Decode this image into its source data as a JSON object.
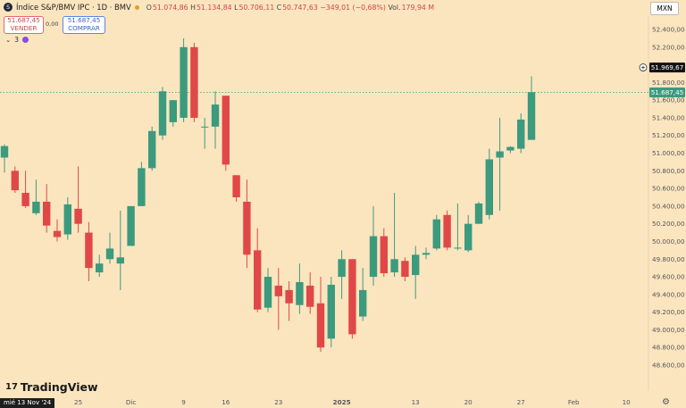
{
  "header": {
    "title": "Índice S&P/BMV IPC · 1D · BMV",
    "market": "BMV",
    "ohlc": {
      "o_label": "O",
      "o": "51.074,86",
      "h_label": "H",
      "h": "51.134,84",
      "l_label": "L",
      "l": "50.706,11",
      "c_label": "C",
      "c": "50.747,63",
      "change": "−349,01 (−0,68%)",
      "vol_label": "Vol.",
      "vol": "179,94 M"
    }
  },
  "trade": {
    "sell_price": "51.687,45",
    "sell_label": "VENDER",
    "spread": "0,00",
    "buy_price": "51.687,45",
    "buy_label": "COMPRAR"
  },
  "indicators": {
    "toggle": "⌄",
    "count": "3"
  },
  "currency": "MXN",
  "brand": "TradingView",
  "date_label": "mié 13 Nov '24",
  "colors": {
    "up": "#3c9a7e",
    "down": "#e04848",
    "background": "#fbe5bf"
  },
  "chart_data": {
    "type": "candlestick",
    "y_ticks": [
      48600,
      48800,
      49000,
      49200,
      49400,
      49600,
      49800,
      50000,
      50200,
      50400,
      50600,
      50800,
      51000,
      51200,
      51400,
      51600,
      51800,
      52000,
      52200,
      52400
    ],
    "y_tick_labels": [
      "48.600,00",
      "48.800,00",
      "49.000,00",
      "49.200,00",
      "49.400,00",
      "49.600,00",
      "49.800,00",
      "50.000,00",
      "50.200,00",
      "50.400,00",
      "50.600,00",
      "50.800,00",
      "51.000,00",
      "51.200,00",
      "51.400,00",
      "51.600,00",
      "51.800,00",
      "52.000,00",
      "52.200,00",
      "52.400,00"
    ],
    "ylim": [
      48400,
      52600
    ],
    "x_ticks": [
      {
        "label": "25",
        "index": 7
      },
      {
        "label": "Dic",
        "index": 12
      },
      {
        "label": "9",
        "index": 17
      },
      {
        "label": "16",
        "index": 21
      },
      {
        "label": "23",
        "index": 26
      },
      {
        "label": "2025",
        "index": 32
      },
      {
        "label": "13",
        "index": 39
      },
      {
        "label": "20",
        "index": 44
      },
      {
        "label": "27",
        "index": 49
      },
      {
        "label": "Feb",
        "index": 54
      },
      {
        "label": "10",
        "index": 59
      }
    ],
    "last_price": 51687.45,
    "last_price_label": "51.687,45",
    "crosshair_price": 51969.67,
    "crosshair_label": "51.969,67",
    "candles": [
      {
        "o": 50950,
        "h": 51100,
        "l": 50780,
        "c": 51080
      },
      {
        "o": 50800,
        "h": 50850,
        "l": 50550,
        "c": 50580
      },
      {
        "o": 50550,
        "h": 50800,
        "l": 50380,
        "c": 50400
      },
      {
        "o": 50320,
        "h": 50700,
        "l": 50300,
        "c": 50450
      },
      {
        "o": 50450,
        "h": 50650,
        "l": 50100,
        "c": 50180
      },
      {
        "o": 50120,
        "h": 50250,
        "l": 50000,
        "c": 50050
      },
      {
        "o": 50080,
        "h": 50500,
        "l": 50020,
        "c": 50420
      },
      {
        "o": 50370,
        "h": 50850,
        "l": 50100,
        "c": 50200
      },
      {
        "o": 50100,
        "h": 50220,
        "l": 49550,
        "c": 49700
      },
      {
        "o": 49650,
        "h": 49850,
        "l": 49600,
        "c": 49750
      },
      {
        "o": 49800,
        "h": 50100,
        "l": 49750,
        "c": 49920
      },
      {
        "o": 49750,
        "h": 50350,
        "l": 49450,
        "c": 49820
      },
      {
        "o": 49950,
        "h": 50400,
        "l": 49950,
        "c": 50400
      },
      {
        "o": 50400,
        "h": 50900,
        "l": 50400,
        "c": 50830
      },
      {
        "o": 50830,
        "h": 51300,
        "l": 50800,
        "c": 51250
      },
      {
        "o": 51200,
        "h": 51750,
        "l": 51150,
        "c": 51700
      },
      {
        "o": 51350,
        "h": 51600,
        "l": 51300,
        "c": 51600
      },
      {
        "o": 51400,
        "h": 52300,
        "l": 51350,
        "c": 52200
      },
      {
        "o": 52200,
        "h": 52250,
        "l": 51350,
        "c": 51400
      },
      {
        "o": 51300,
        "h": 51400,
        "l": 51050,
        "c": 51300
      },
      {
        "o": 51300,
        "h": 51700,
        "l": 51050,
        "c": 51550
      },
      {
        "o": 51650,
        "h": 51650,
        "l": 50800,
        "c": 50870
      },
      {
        "o": 50750,
        "h": 50750,
        "l": 50450,
        "c": 50500
      },
      {
        "o": 50450,
        "h": 50700,
        "l": 49700,
        "c": 49850
      },
      {
        "o": 49900,
        "h": 50150,
        "l": 49200,
        "c": 49230
      },
      {
        "o": 49250,
        "h": 49700,
        "l": 49200,
        "c": 49600
      },
      {
        "o": 49500,
        "h": 49700,
        "l": 49000,
        "c": 49380
      },
      {
        "o": 49450,
        "h": 49550,
        "l": 49100,
        "c": 49300
      },
      {
        "o": 49280,
        "h": 49750,
        "l": 49180,
        "c": 49540
      },
      {
        "o": 49500,
        "h": 49650,
        "l": 49180,
        "c": 49260
      },
      {
        "o": 49300,
        "h": 49600,
        "l": 48750,
        "c": 48800
      },
      {
        "o": 48900,
        "h": 49600,
        "l": 48800,
        "c": 49510
      },
      {
        "o": 49600,
        "h": 49900,
        "l": 49350,
        "c": 49800
      },
      {
        "o": 49800,
        "h": 49800,
        "l": 48900,
        "c": 48950
      },
      {
        "o": 49150,
        "h": 49700,
        "l": 49100,
        "c": 49450
      },
      {
        "o": 49600,
        "h": 50400,
        "l": 49500,
        "c": 50060
      },
      {
        "o": 50060,
        "h": 50150,
        "l": 49600,
        "c": 49640
      },
      {
        "o": 49650,
        "h": 50550,
        "l": 49600,
        "c": 49800
      },
      {
        "o": 49780,
        "h": 49820,
        "l": 49550,
        "c": 49600
      },
      {
        "o": 49620,
        "h": 49950,
        "l": 49350,
        "c": 49850
      },
      {
        "o": 49850,
        "h": 49930,
        "l": 49800,
        "c": 49870
      },
      {
        "o": 49920,
        "h": 50300,
        "l": 49900,
        "c": 50250
      },
      {
        "o": 50300,
        "h": 50350,
        "l": 49900,
        "c": 49930
      },
      {
        "o": 49920,
        "h": 50430,
        "l": 49900,
        "c": 49930
      },
      {
        "o": 49900,
        "h": 50300,
        "l": 49880,
        "c": 50200
      },
      {
        "o": 50200,
        "h": 50450,
        "l": 50200,
        "c": 50430
      },
      {
        "o": 50300,
        "h": 51050,
        "l": 50250,
        "c": 50930
      },
      {
        "o": 50950,
        "h": 51400,
        "l": 50350,
        "c": 51020
      },
      {
        "o": 51030,
        "h": 51080,
        "l": 51000,
        "c": 51070
      },
      {
        "o": 51050,
        "h": 51450,
        "l": 51000,
        "c": 51380
      },
      {
        "o": 51150,
        "h": 51870,
        "l": 51150,
        "c": 51690
      }
    ]
  }
}
